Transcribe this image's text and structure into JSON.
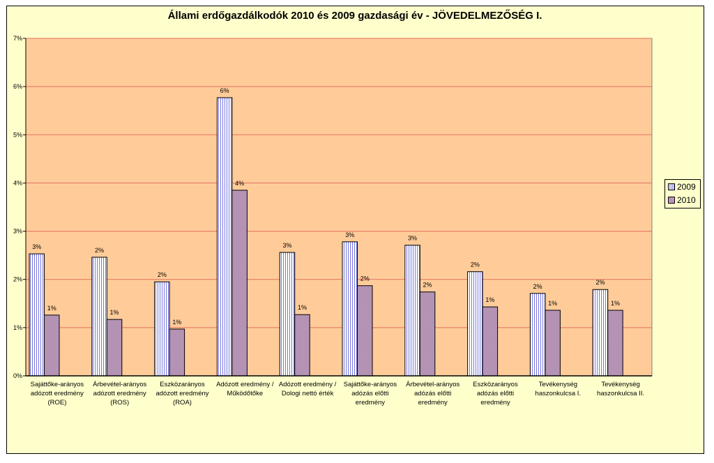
{
  "chart_data": {
    "type": "bar",
    "title": "Állami erdőgazdálkodók 2010 és 2009 gazdasági év - JÖVEDELMEZŐSÉG I.",
    "xlabel": "",
    "ylabel": "",
    "ylim": [
      0,
      7
    ],
    "yticks": [
      "0%",
      "1%",
      "2%",
      "3%",
      "4%",
      "5%",
      "6%",
      "7%"
    ],
    "grid": true,
    "legend_position": "right",
    "categories": [
      [
        "Sajáttőke-arányos",
        "adózott eredmény",
        "(ROE)"
      ],
      [
        "Árbevétel-arányos",
        "adózott eredmény",
        "(ROS)"
      ],
      [
        "Eszközarányos",
        "adózott eredmény",
        "(ROA)"
      ],
      [
        "Adózott eredmény /",
        "Működőtőke"
      ],
      [
        "Adózott eredmény /",
        "Dologi nettó érték"
      ],
      [
        "Sajáttőke-arányos",
        "adózás előtti",
        "eredmény"
      ],
      [
        "Árbevétel-arányos",
        "adózás előtti",
        "eredmény"
      ],
      [
        "Eszközarányos",
        "adózás előtti",
        "eredmény"
      ],
      [
        "Tevékenység",
        "haszonkulcsa I."
      ],
      [
        "Tevékenység",
        "haszonkulcsa II."
      ]
    ],
    "series": [
      {
        "name": "2009",
        "values": [
          2.53,
          2.46,
          1.95,
          5.77,
          2.56,
          2.78,
          2.71,
          2.16,
          1.71,
          1.79
        ],
        "labels": [
          "3%",
          "2%",
          "2%",
          "6%",
          "3%",
          "3%",
          "3%",
          "2%",
          "2%",
          "2%"
        ]
      },
      {
        "name": "2010",
        "values": [
          1.26,
          1.17,
          0.97,
          3.85,
          1.27,
          1.87,
          1.74,
          1.43,
          1.36,
          1.36
        ],
        "labels": [
          "1%",
          "1%",
          "1%",
          "4%",
          "1%",
          "2%",
          "2%",
          "1%",
          "1%",
          "1%"
        ]
      }
    ],
    "colors": {
      "background": "#FFFFCC",
      "plot": "#FFCC99",
      "grid": "#E07060"
    }
  }
}
